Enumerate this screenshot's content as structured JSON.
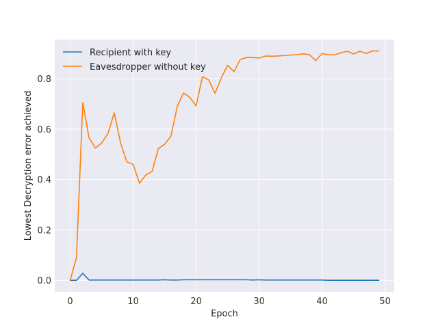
{
  "chart_data": {
    "type": "line",
    "title": "",
    "xlabel": "Epoch",
    "ylabel": "Lowest Decryption error achieved",
    "xlim": [
      -2.45,
      51.45
    ],
    "ylim": [
      -0.0455,
      0.955
    ],
    "xticks": [
      0,
      10,
      20,
      30,
      40,
      50
    ],
    "yticks": [
      0.0,
      0.2,
      0.4,
      0.6,
      0.8
    ],
    "xtick_labels": [
      "0",
      "10",
      "20",
      "30",
      "40",
      "50"
    ],
    "ytick_labels": [
      "0.0",
      "0.2",
      "0.4",
      "0.6",
      "0.8"
    ],
    "grid": true,
    "legend_position": "upper-left",
    "x": [
      0,
      1,
      2,
      3,
      4,
      5,
      6,
      7,
      8,
      9,
      10,
      11,
      12,
      13,
      14,
      15,
      16,
      17,
      18,
      19,
      20,
      21,
      22,
      23,
      24,
      25,
      26,
      27,
      28,
      29,
      30,
      31,
      32,
      33,
      34,
      35,
      36,
      37,
      38,
      39,
      40,
      41,
      42,
      43,
      44,
      45,
      46,
      47,
      48,
      49
    ],
    "series": [
      {
        "name": "Recipient with key",
        "color": "#1f77b4",
        "values": [
          0.0,
          0.0,
          0.028,
          0.001,
          0.001,
          0.001,
          0.001,
          0.001,
          0.001,
          0.001,
          0.001,
          0.001,
          0.001,
          0.001,
          0.001,
          0.002,
          0.001,
          0.001,
          0.002,
          0.002,
          0.002,
          0.002,
          0.002,
          0.002,
          0.002,
          0.002,
          0.002,
          0.002,
          0.002,
          0.001,
          0.002,
          0.001,
          0.001,
          0.001,
          0.001,
          0.001,
          0.001,
          0.001,
          0.001,
          0.001,
          0.001,
          0.0,
          0.0,
          0.0,
          0.0,
          0.0,
          0.0,
          0.0,
          0.0,
          0.0
        ]
      },
      {
        "name": "Eavesdropper without key",
        "color": "#ff7f0e",
        "values": [
          0.0,
          0.09,
          0.705,
          0.565,
          0.525,
          0.545,
          0.582,
          0.665,
          0.545,
          0.47,
          0.46,
          0.385,
          0.418,
          0.432,
          0.522,
          0.54,
          0.572,
          0.69,
          0.743,
          0.726,
          0.692,
          0.808,
          0.795,
          0.742,
          0.803,
          0.853,
          0.828,
          0.876,
          0.884,
          0.884,
          0.882,
          0.89,
          0.889,
          0.89,
          0.892,
          0.894,
          0.895,
          0.899,
          0.895,
          0.872,
          0.9,
          0.895,
          0.895,
          0.903,
          0.909,
          0.898,
          0.909,
          0.9,
          0.91,
          0.91
        ]
      }
    ]
  }
}
